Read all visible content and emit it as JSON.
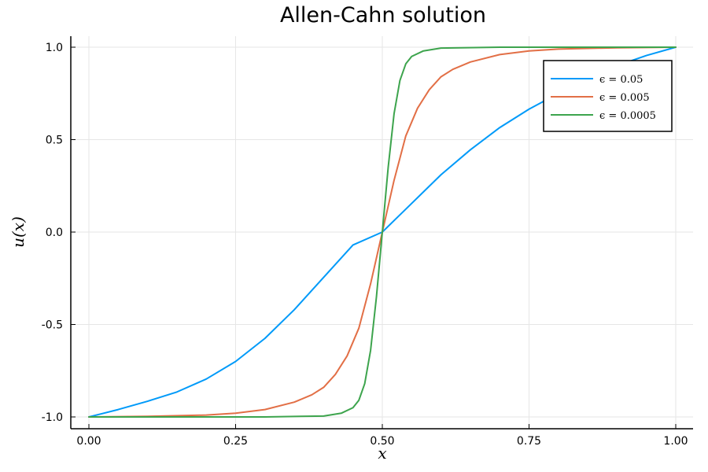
{
  "chart_data": {
    "type": "line",
    "title": "Allen-Cahn solution",
    "xlabel": "x",
    "ylabel": "u(x)",
    "xlim": [
      0.0,
      1.0
    ],
    "ylim": [
      -1.0,
      1.0
    ],
    "xticks": [
      0.0,
      0.25,
      0.5,
      0.75,
      1.0
    ],
    "xtick_labels": [
      "0.00",
      "0.25",
      "0.50",
      "0.75",
      "1.00"
    ],
    "yticks": [
      -1.0,
      -0.5,
      0.0,
      0.5,
      1.0
    ],
    "ytick_labels": [
      "-1.0",
      "-0.5",
      "0.0",
      "0.5",
      "1.0"
    ],
    "grid": true,
    "legend_position": "top-right",
    "series": [
      {
        "name": "ϵ = 0.05",
        "color": "#009af9",
        "x": [
          0.0,
          0.05,
          0.1,
          0.15,
          0.2,
          0.25,
          0.3,
          0.35,
          0.4,
          0.45,
          0.5,
          0.55,
          0.6,
          0.65,
          0.7,
          0.75,
          0.8,
          0.85,
          0.9,
          0.95,
          1.0
        ],
        "y": [
          -1.0,
          -0.96,
          -0.915,
          -0.865,
          -0.795,
          -0.7,
          -0.575,
          -0.42,
          -0.245,
          -0.07,
          0.0,
          0.155,
          0.31,
          0.445,
          0.565,
          0.665,
          0.75,
          0.83,
          0.9,
          0.955,
          1.0
        ]
      },
      {
        "name": "ϵ = 0.005",
        "color": "#e26f46",
        "x": [
          0.0,
          0.1,
          0.2,
          0.25,
          0.3,
          0.35,
          0.38,
          0.4,
          0.42,
          0.44,
          0.46,
          0.48,
          0.5,
          0.52,
          0.54,
          0.56,
          0.58,
          0.6,
          0.62,
          0.65,
          0.7,
          0.75,
          0.8,
          0.9,
          1.0
        ],
        "y": [
          -1.0,
          -0.997,
          -0.99,
          -0.98,
          -0.96,
          -0.92,
          -0.88,
          -0.84,
          -0.77,
          -0.67,
          -0.52,
          -0.28,
          0.0,
          0.28,
          0.52,
          0.67,
          0.77,
          0.84,
          0.88,
          0.92,
          0.96,
          0.98,
          0.99,
          0.997,
          1.0
        ]
      },
      {
        "name": "ϵ = 0.0005",
        "color": "#3da44d",
        "x": [
          0.0,
          0.3,
          0.4,
          0.43,
          0.45,
          0.46,
          0.47,
          0.48,
          0.49,
          0.5,
          0.51,
          0.52,
          0.53,
          0.54,
          0.55,
          0.57,
          0.6,
          0.7,
          1.0
        ],
        "y": [
          -1.0,
          -1.0,
          -0.995,
          -0.98,
          -0.95,
          -0.91,
          -0.82,
          -0.64,
          -0.35,
          0.0,
          0.35,
          0.64,
          0.82,
          0.91,
          0.95,
          0.98,
          0.995,
          1.0,
          1.0
        ]
      }
    ]
  }
}
